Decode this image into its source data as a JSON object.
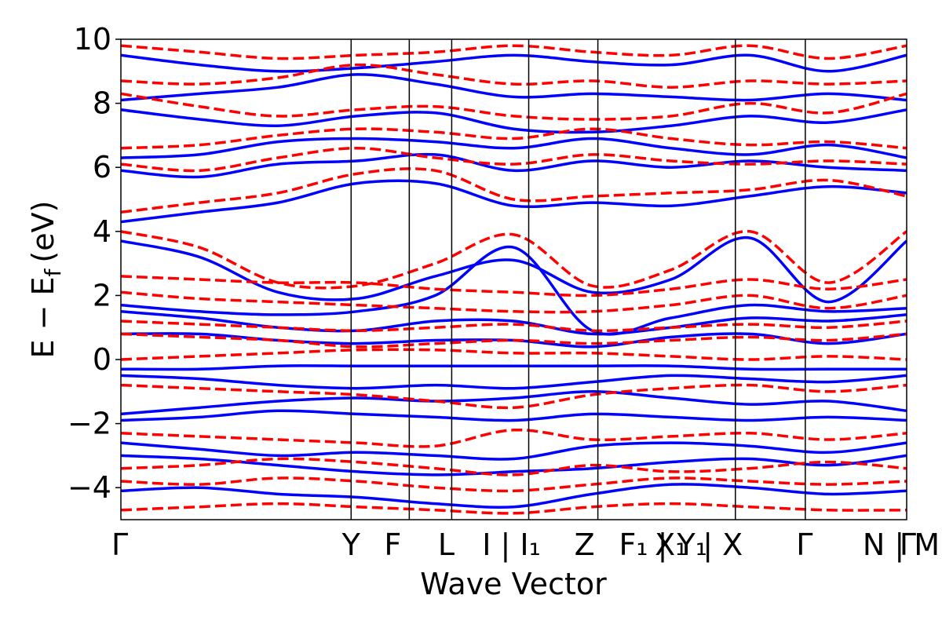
{
  "chart_data": {
    "type": "line",
    "title": "",
    "xlabel": "Wave Vector",
    "ylabel": "E − E",
    "ylabel_subscript": "f",
    "ylabel_unit": "(eV)",
    "ylim": [
      -5,
      10
    ],
    "yticks": [
      {
        "value": 10,
        "label": "10"
      },
      {
        "value": 8,
        "label": "8"
      },
      {
        "value": 6,
        "label": "6"
      },
      {
        "value": 4,
        "label": "4"
      },
      {
        "value": 2,
        "label": "2"
      },
      {
        "value": 0,
        "label": "0"
      },
      {
        "value": -2,
        "label": "−2"
      },
      {
        "value": -4,
        "label": "−4"
      }
    ],
    "xlim": [
      0,
      1
    ],
    "kpoint_positions": [
      0,
      0.293,
      0.367,
      0.421,
      0.519,
      0.607,
      0.782,
      0.871,
      1.0
    ],
    "xticks": [
      {
        "x": 0.0,
        "label": "Γ"
      },
      {
        "x": 0.293,
        "label": "Y"
      },
      {
        "x": 0.346,
        "label": "F"
      },
      {
        "x": 0.414,
        "label": "L"
      },
      {
        "x": 0.497,
        "label": "I | I₁"
      },
      {
        "x": 0.59,
        "label": "Z"
      },
      {
        "x": 0.69,
        "label": "F₁ | Y₁"
      },
      {
        "x": 0.7,
        "label": "X₁"
      },
      {
        "x": 0.766,
        "label": "| X"
      },
      {
        "x": 0.87,
        "label": "Γ"
      },
      {
        "x": 0.993,
        "label": "N | M"
      },
      {
        "x": 1.0,
        "label": "Γ"
      }
    ],
    "series": [
      {
        "style": "solid",
        "color": "#0000ff",
        "bands": [
          [
            3.7,
            3.2,
            2.1,
            1.9,
            2.6,
            3.1,
            2.1,
            2.5,
            3.8,
            1.8,
            3.7
          ],
          [
            1.7,
            1.5,
            1.4,
            1.5,
            2.0,
            3.5,
            0.9,
            1.3,
            1.7,
            1.5,
            1.6
          ],
          [
            1.5,
            1.3,
            1.0,
            0.9,
            1.2,
            1.2,
            0.8,
            1.0,
            1.3,
            1.2,
            1.4
          ],
          [
            0.8,
            0.8,
            0.6,
            0.5,
            0.6,
            0.6,
            0.4,
            0.7,
            0.8,
            0.5,
            0.8
          ],
          [
            -0.3,
            -0.3,
            -0.2,
            -0.2,
            -0.2,
            -0.2,
            -0.2,
            -0.2,
            -0.3,
            -0.3,
            -0.3
          ],
          [
            -0.5,
            -0.6,
            -0.8,
            -0.9,
            -0.8,
            -0.9,
            -0.7,
            -0.5,
            -0.6,
            -0.7,
            -0.5
          ],
          [
            -1.7,
            -1.5,
            -1.3,
            -1.2,
            -1.3,
            -1.2,
            -1.0,
            -1.2,
            -1.4,
            -1.3,
            -1.6
          ],
          [
            -1.9,
            -1.8,
            -1.6,
            -1.7,
            -1.8,
            -1.9,
            -1.7,
            -1.8,
            -1.9,
            -1.8,
            -1.9
          ],
          [
            -2.6,
            -2.8,
            -3.0,
            -2.9,
            -3.0,
            -3.1,
            -2.7,
            -2.6,
            -2.7,
            -2.9,
            -2.6
          ],
          [
            -3.0,
            -3.1,
            -3.3,
            -3.5,
            -3.6,
            -3.5,
            -3.4,
            -3.2,
            -3.1,
            -3.3,
            -3.0
          ],
          [
            -4.1,
            -4.0,
            -4.2,
            -4.3,
            -4.5,
            -4.6,
            -4.2,
            -3.9,
            -4.0,
            -4.2,
            -4.1
          ],
          [
            4.3,
            4.6,
            4.9,
            5.5,
            5.5,
            4.8,
            4.9,
            4.8,
            5.1,
            5.4,
            5.2
          ],
          [
            5.9,
            5.7,
            6.1,
            6.2,
            6.4,
            5.9,
            6.2,
            6.0,
            6.2,
            6.0,
            5.9
          ],
          [
            6.3,
            6.4,
            6.8,
            6.9,
            6.8,
            6.6,
            6.9,
            6.6,
            6.4,
            6.7,
            6.3
          ],
          [
            7.8,
            7.5,
            7.3,
            7.6,
            7.7,
            7.2,
            7.1,
            7.3,
            7.6,
            7.4,
            7.8
          ],
          [
            8.1,
            8.3,
            8.5,
            8.9,
            8.6,
            8.2,
            8.3,
            8.2,
            8.1,
            8.3,
            8.1
          ],
          [
            9.5,
            9.2,
            9.0,
            9.1,
            9.3,
            9.5,
            9.3,
            9.2,
            9.5,
            9.0,
            9.5
          ]
        ]
      },
      {
        "style": "dashed",
        "color": "#ff0000",
        "bands": [
          [
            4.0,
            3.5,
            2.4,
            2.3,
            3.0,
            3.9,
            2.3,
            2.8,
            4.0,
            2.4,
            4.0
          ],
          [
            2.6,
            2.5,
            2.4,
            2.4,
            2.2,
            2.1,
            2.0,
            2.2,
            2.5,
            2.2,
            2.5
          ],
          [
            2.1,
            1.9,
            1.8,
            1.7,
            1.6,
            1.5,
            1.5,
            1.7,
            2.0,
            1.6,
            2.0
          ],
          [
            1.2,
            1.1,
            1.0,
            0.9,
            1.0,
            1.1,
            0.9,
            1.0,
            1.1,
            1.0,
            1.2
          ],
          [
            0.8,
            0.7,
            0.6,
            0.4,
            0.5,
            0.6,
            0.5,
            0.6,
            0.7,
            0.6,
            0.8
          ],
          [
            0.0,
            0.1,
            0.2,
            0.3,
            0.3,
            0.2,
            0.2,
            0.1,
            0.0,
            0.1,
            0.0
          ],
          [
            -0.8,
            -0.9,
            -1.0,
            -1.1,
            -1.3,
            -1.5,
            -1.1,
            -0.9,
            -0.8,
            -1.0,
            -0.8
          ],
          [
            -2.3,
            -2.4,
            -2.5,
            -2.6,
            -2.7,
            -2.2,
            -2.5,
            -2.4,
            -2.3,
            -2.5,
            -2.3
          ],
          [
            -3.4,
            -3.3,
            -3.1,
            -3.2,
            -3.4,
            -3.6,
            -3.3,
            -3.5,
            -3.4,
            -3.2,
            -3.4
          ],
          [
            -3.8,
            -3.9,
            -3.7,
            -3.8,
            -4.0,
            -4.1,
            -3.9,
            -3.7,
            -3.8,
            -3.9,
            -3.8
          ],
          [
            -4.7,
            -4.6,
            -4.5,
            -4.6,
            -4.7,
            -4.8,
            -4.6,
            -4.5,
            -4.6,
            -4.7,
            -4.7
          ],
          [
            4.6,
            4.9,
            5.2,
            5.8,
            5.9,
            5.0,
            5.1,
            5.2,
            5.3,
            5.6,
            5.1
          ],
          [
            6.1,
            5.9,
            6.3,
            6.6,
            6.3,
            6.1,
            6.4,
            6.2,
            6.1,
            6.2,
            6.1
          ],
          [
            6.6,
            6.7,
            7.0,
            7.2,
            7.1,
            6.9,
            7.2,
            6.9,
            6.7,
            6.8,
            6.6
          ],
          [
            8.3,
            7.9,
            7.6,
            7.8,
            7.9,
            7.6,
            7.5,
            7.6,
            8.0,
            7.7,
            8.3
          ],
          [
            8.7,
            8.6,
            8.8,
            9.2,
            8.9,
            8.6,
            8.7,
            8.5,
            8.7,
            8.6,
            8.7
          ],
          [
            9.8,
            9.6,
            9.4,
            9.5,
            9.6,
            9.8,
            9.6,
            9.5,
            9.8,
            9.4,
            9.8
          ]
        ]
      }
    ]
  }
}
